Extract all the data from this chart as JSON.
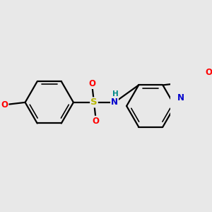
{
  "background_color": "#e8e8e8",
  "bond_color": "#000000",
  "bond_width": 1.6,
  "atom_colors": {
    "S": "#b8b800",
    "O": "#ff0000",
    "N": "#0000cc",
    "H": "#008888",
    "C": "#000000"
  },
  "figsize": [
    3.0,
    3.0
  ],
  "dpi": 100,
  "xlim": [
    -3.8,
    3.2
  ],
  "ylim": [
    -2.2,
    2.2
  ]
}
